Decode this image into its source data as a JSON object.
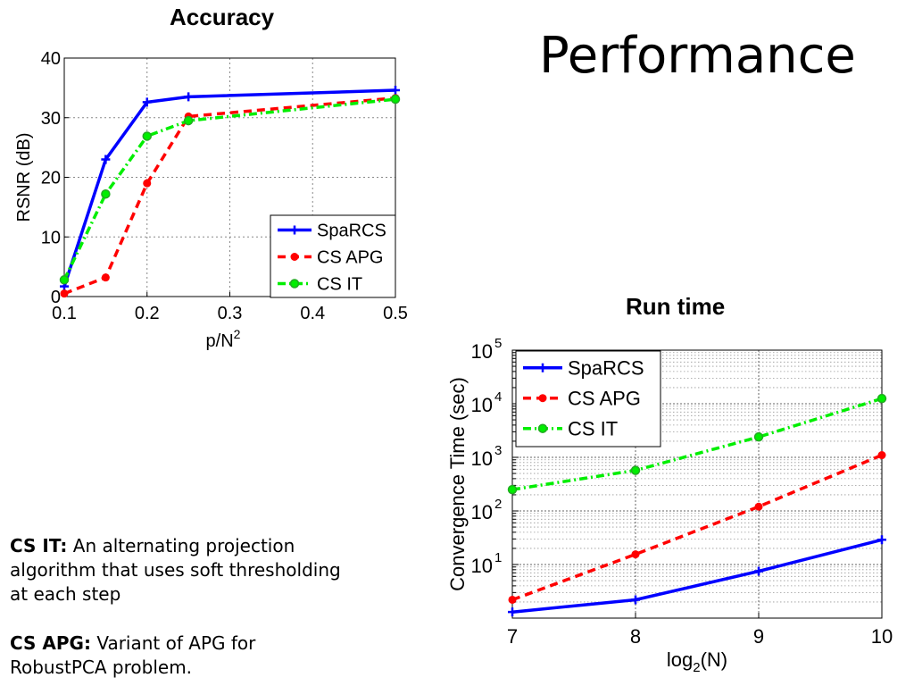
{
  "slide": {
    "title": "Performance"
  },
  "notes": [
    {
      "term": "CS IT:",
      "text": "An alternating projection algorithm that uses soft thresholding at each step"
    },
    {
      "term": "CS APG:",
      "text": "Variant of APG for RobustPCA problem."
    }
  ],
  "colors": {
    "SpaRCS": "#0000ff",
    "CS APG": "#ff0000",
    "CS IT": "#00ee00"
  },
  "chart_data": [
    {
      "type": "line",
      "title": "Accuracy",
      "xlabel": "p/N2",
      "ylabel": "RSNR (dB)",
      "xlim": [
        0.1,
        0.5
      ],
      "ylim": [
        0,
        40
      ],
      "xticks": [
        0.1,
        0.2,
        0.3,
        0.4,
        0.5
      ],
      "xtick_labels": [
        "0.1",
        "0.2",
        "0.3",
        "0.4",
        "0.5"
      ],
      "yticks": [
        0,
        10,
        20,
        30,
        40
      ],
      "ytick_labels": [
        "0",
        "10",
        "20",
        "30",
        "40"
      ],
      "grid": "major",
      "legend": "bottom-right",
      "series": [
        {
          "name": "SpaRCS",
          "x": [
            0.1,
            0.15,
            0.2,
            0.25,
            0.5
          ],
          "y": [
            1.7,
            23,
            32.6,
            33.5,
            34.6
          ],
          "style": "solid",
          "marker": "plus"
        },
        {
          "name": "CS APG",
          "x": [
            0.1,
            0.15,
            0.2,
            0.25,
            0.5
          ],
          "y": [
            0.5,
            3.2,
            19,
            30.2,
            33.3
          ],
          "style": "dashed",
          "marker": "dot"
        },
        {
          "name": "CS IT",
          "x": [
            0.1,
            0.15,
            0.2,
            0.25,
            0.5
          ],
          "y": [
            2.8,
            17.2,
            26.9,
            29.5,
            33.1
          ],
          "style": "dashdot",
          "marker": "circle"
        }
      ]
    },
    {
      "type": "line",
      "title": "Run time",
      "xlabel": "log2(N)",
      "ylabel": "Convergence Time (sec)",
      "xlim": [
        7,
        10
      ],
      "ylim": [
        1,
        100000
      ],
      "yscale": "log",
      "xticks": [
        7,
        8,
        9,
        10
      ],
      "xtick_labels": [
        "7",
        "8",
        "9",
        "10"
      ],
      "yticks": [
        10,
        100,
        1000,
        10000,
        100000
      ],
      "ytick_labels": [
        "10^1",
        "10^2",
        "10^3",
        "10^4",
        "10^5"
      ],
      "grid": "major and minor (dotted)",
      "legend": "top-left",
      "series": [
        {
          "name": "SpaRCS",
          "x": [
            7,
            8,
            9,
            10
          ],
          "y": [
            1.3,
            2.2,
            7.5,
            29
          ],
          "style": "solid",
          "marker": "plus"
        },
        {
          "name": "CS APG",
          "x": [
            7,
            8,
            9,
            10
          ],
          "y": [
            2.2,
            15.5,
            120,
            1100
          ],
          "style": "dashed",
          "marker": "dot"
        },
        {
          "name": "CS IT",
          "x": [
            7,
            8,
            9,
            10
          ],
          "y": [
            250,
            570,
            2400,
            12500
          ],
          "style": "dashdot",
          "marker": "circle"
        }
      ]
    }
  ]
}
